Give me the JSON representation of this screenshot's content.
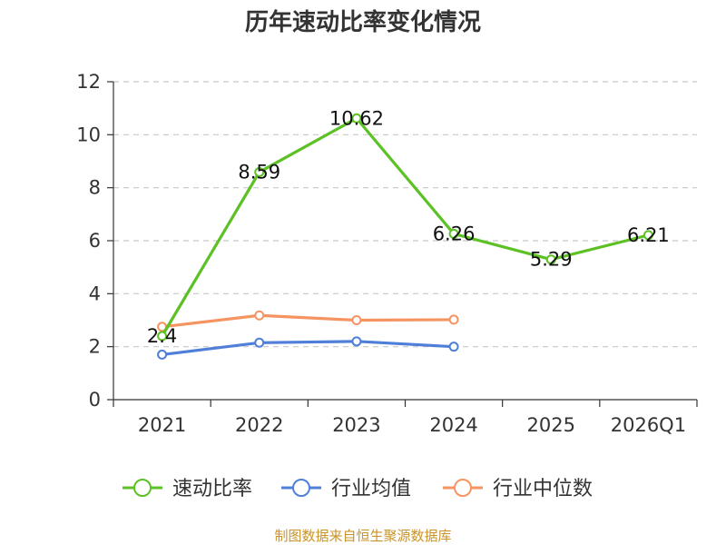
{
  "chart_data": {
    "type": "line",
    "title": "历年速动比率变化情况",
    "categories": [
      "2021",
      "2022",
      "2023",
      "2024",
      "2025",
      "2026Q1"
    ],
    "ylim": [
      0,
      12
    ],
    "yticks": [
      0,
      2,
      4,
      6,
      8,
      10,
      12
    ],
    "grid": true,
    "legend_position": "bottom",
    "series": [
      {
        "name": "速动比率",
        "color": "#5cc124",
        "values": [
          2.4,
          8.59,
          10.62,
          6.26,
          5.29,
          6.21
        ],
        "labels": [
          "2.4",
          "8.59",
          "10.62",
          "6.26",
          "5.29",
          "6.21"
        ]
      },
      {
        "name": "行业均值",
        "color": "#4f7fd8",
        "values": [
          1.7,
          2.15,
          2.2,
          2.0,
          null,
          null
        ]
      },
      {
        "name": "行业中位数",
        "color": "#f59461",
        "values": [
          2.75,
          3.18,
          3.0,
          3.02,
          null,
          null
        ]
      }
    ],
    "source": "制图数据来自恒生聚源数据库"
  }
}
